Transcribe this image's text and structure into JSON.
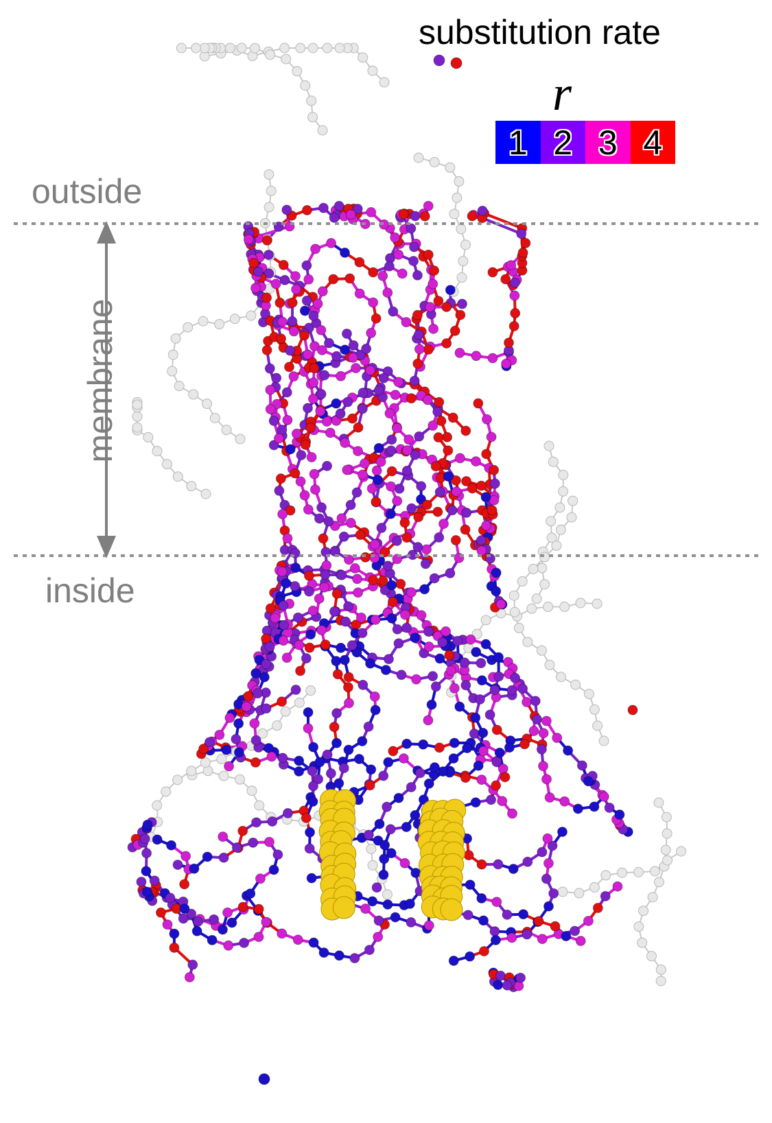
{
  "legend": {
    "title": "substitution rate",
    "variable": "r",
    "scale": [
      {
        "label": "1",
        "color": "#0000ff"
      },
      {
        "label": "2",
        "color": "#8000ff"
      },
      {
        "label": "3",
        "color": "#ff00cc"
      },
      {
        "label": "4",
        "color": "#ff0000"
      }
    ]
  },
  "regions": {
    "outside": "outside",
    "membrane": "membrane",
    "inside": "inside"
  },
  "colors": {
    "rate1": "#1a10c8",
    "rate2": "#7a22c8",
    "rate3": "#d21fd2",
    "rate4": "#e01010",
    "unassigned": "#e8e8e8",
    "ligand": "#f2cc1a",
    "boundary": "#909090"
  }
}
